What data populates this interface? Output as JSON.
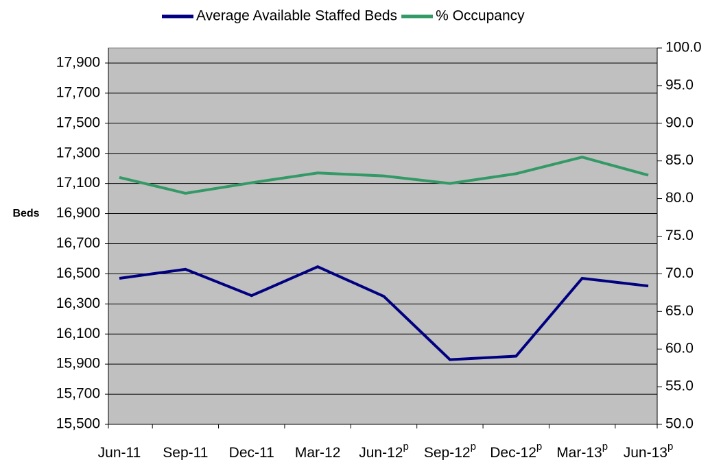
{
  "chart_data": {
    "type": "line",
    "categories": [
      "Jun-11",
      "Sep-11",
      "Dec-11",
      "Mar-12",
      "Jun-12",
      "Sep-12",
      "Dec-12",
      "Mar-13",
      "Jun-13"
    ],
    "category_notes": [
      null,
      null,
      null,
      null,
      "p",
      "p",
      "p",
      "p",
      "p"
    ],
    "y_label": "Beds",
    "series": [
      {
        "name": "Average Available Staffed Beds",
        "color": "#000080",
        "values": [
          16470,
          16530,
          16355,
          16547,
          16350,
          15930,
          15953,
          16470,
          16419
        ]
      },
      {
        "name": "% Occupancy",
        "color": "#339966",
        "axis": "y2",
        "values": [
          82.8,
          80.7,
          82.1,
          83.4,
          83.0,
          82.0,
          83.3,
          85.5,
          83.1
        ]
      }
    ],
    "ylim": [
      15500,
      18000
    ],
    "yticks": [
      {
        "value": 15500,
        "label": "15,500"
      },
      {
        "value": 15700,
        "label": "15,700"
      },
      {
        "value": 15900,
        "label": "15,900"
      },
      {
        "value": 16100,
        "label": "16,100"
      },
      {
        "value": 16300,
        "label": "16,300"
      },
      {
        "value": 16500,
        "label": "16,500"
      },
      {
        "value": 16700,
        "label": "16,700"
      },
      {
        "value": 16900,
        "label": "16,900"
      },
      {
        "value": 17100,
        "label": "17,100"
      },
      {
        "value": 17300,
        "label": "17,300"
      },
      {
        "value": 17500,
        "label": "17,500"
      },
      {
        "value": 17700,
        "label": "17,700"
      },
      {
        "value": 17900,
        "label": "17,900"
      }
    ],
    "y2lim": [
      50,
      100
    ],
    "y2ticks": [
      {
        "value": 50,
        "label": "50.0"
      },
      {
        "value": 55,
        "label": "55.0"
      },
      {
        "value": 60,
        "label": "60.0"
      },
      {
        "value": 65,
        "label": "65.0"
      },
      {
        "value": 70,
        "label": "70.0"
      },
      {
        "value": 75,
        "label": "75.0"
      },
      {
        "value": 80,
        "label": "80.0"
      },
      {
        "value": 85,
        "label": "85.0"
      },
      {
        "value": 90,
        "label": "90.0"
      },
      {
        "value": 95,
        "label": "95.0"
      },
      {
        "value": 100,
        "label": "100.0"
      }
    ],
    "grid": true
  }
}
